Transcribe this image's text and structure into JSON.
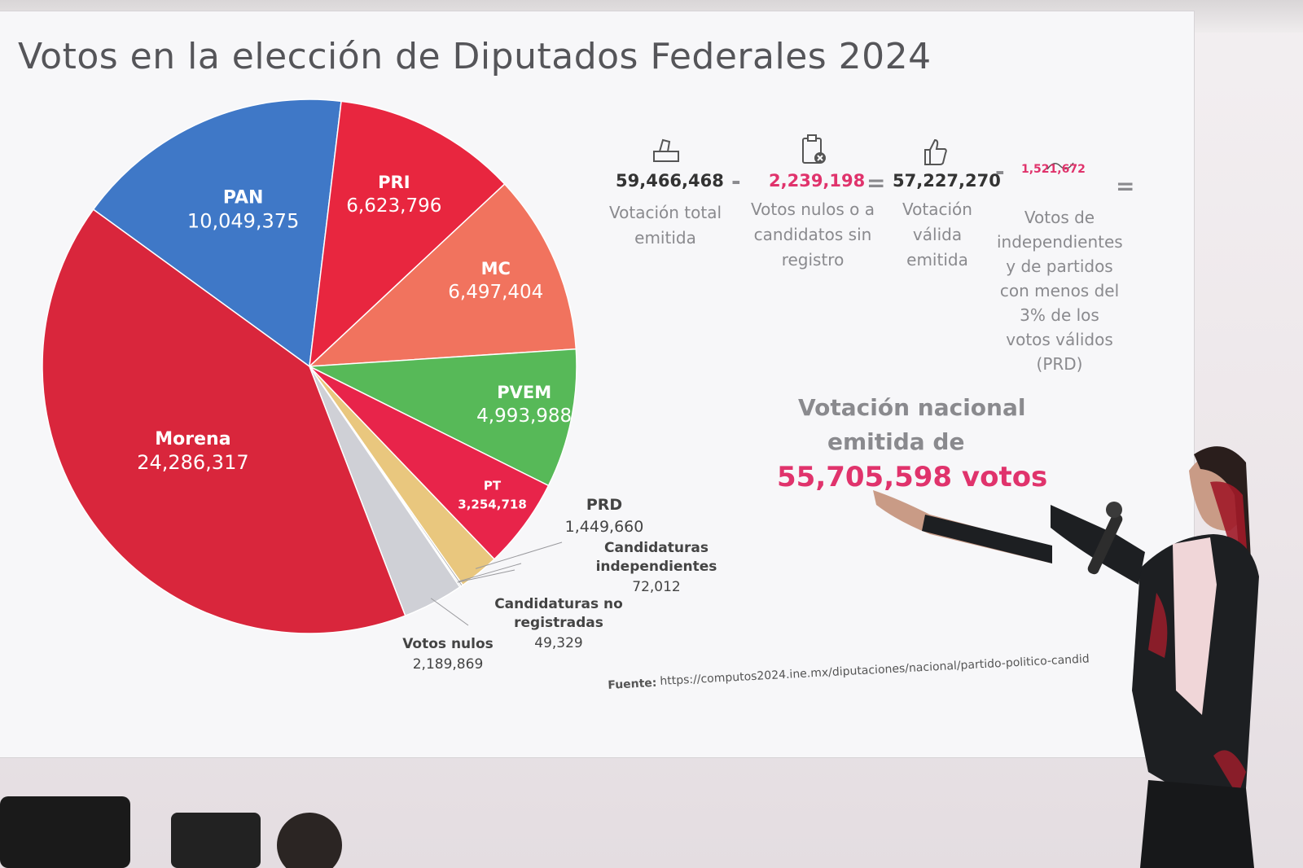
{
  "screen": {
    "title": "Votos en la elección de Diputados Federales 2024",
    "source_label": "Fuente:",
    "source_url": "https://computos2024.ine.mx/diputaciones/nacional/partido-politico-candid"
  },
  "chart_data": {
    "type": "pie",
    "slices": [
      {
        "label": "PAN",
        "value_text": "10,049,375",
        "value": 10049375,
        "color": "#3f78c7"
      },
      {
        "label": "PRI",
        "value_text": "6,623,796",
        "value": 6623796,
        "color": "#e8263f"
      },
      {
        "label": "MC",
        "value_text": "6,497,404",
        "value": 6497404,
        "color": "#f1735e"
      },
      {
        "label": "PVEM",
        "value_text": "4,993,988",
        "value": 4993988,
        "color": "#57b958"
      },
      {
        "label": "PT",
        "value_text": "3,254,718",
        "value": 3254718,
        "color": "#e8244a"
      },
      {
        "label": "PRD",
        "value_text": "1,449,660",
        "value": 1449660,
        "color": "#e9c77e"
      },
      {
        "label": "Candidaturas independientes",
        "value_text": "72,012",
        "value": 72012,
        "color": "#a2a2a6"
      },
      {
        "label": "Candidaturas no registradas",
        "value_text": "49,329",
        "value": 49329,
        "color": "#8a8a8e"
      },
      {
        "label": "Votos nulos",
        "value_text": "2,189,869",
        "value": 2189869,
        "color": "#cfd0d6"
      },
      {
        "label": "Morena",
        "value_text": "24,286,317",
        "value": 24286317,
        "color": "#d9263c"
      }
    ]
  },
  "equation": {
    "total": "59,466,468",
    "total_label": "Votación total emitida",
    "minus1": "-",
    "nulls": "2,239,198",
    "nulls_label": "Votos nulos o a candidatos sin registro",
    "equals1": "=",
    "valid": "57,227,270",
    "valid_label": "Votación válida emitida",
    "minus2": "-",
    "indep": "1,521,672",
    "indep_label": "Votos de independientes y de partidos con menos del 3% de los votos válidos (PRD)",
    "equals2": "="
  },
  "national": {
    "line1": "Votación nacional",
    "line2": "emitida de",
    "line3": "55,705,598 votos"
  },
  "colors": {
    "accent_pink": "#e0336c",
    "gray_text": "#8a8a8e"
  }
}
